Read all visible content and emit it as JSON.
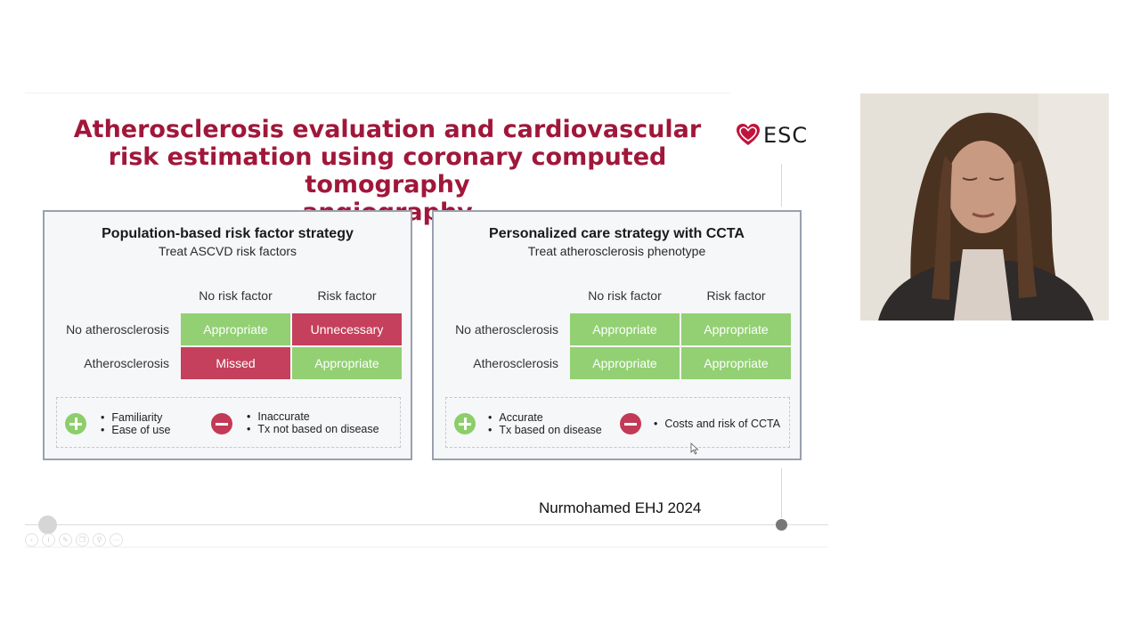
{
  "slide": {
    "title_lines": [
      "Atherosclerosis evaluation and cardiovascular",
      "risk estimation using coronary computed tomography",
      "angiography"
    ],
    "logo_text": "ESC",
    "citation": "Nurmohamed EHJ 2024"
  },
  "panels": [
    {
      "title": "Population-based risk factor strategy",
      "subtitle": "Treat ASCVD risk factors",
      "col_headers": [
        "No risk factor",
        "Risk factor"
      ],
      "rows": [
        {
          "label": "No atherosclerosis",
          "cells": [
            {
              "text": "Appropriate",
              "status": "green"
            },
            {
              "text": "Unnecessary",
              "status": "red"
            }
          ]
        },
        {
          "label": "Atherosclerosis",
          "cells": [
            {
              "text": "Missed",
              "status": "red"
            },
            {
              "text": "Appropriate",
              "status": "green"
            }
          ]
        }
      ],
      "pros": [
        "Familiarity",
        "Ease of use"
      ],
      "cons": [
        "Inaccurate",
        "Tx not based on disease"
      ]
    },
    {
      "title": "Personalized care strategy with CCTA",
      "subtitle": "Treat atherosclerosis phenotype",
      "col_headers": [
        "No risk factor",
        "Risk factor"
      ],
      "rows": [
        {
          "label": "No atherosclerosis",
          "cells": [
            {
              "text": "Appropriate",
              "status": "green"
            },
            {
              "text": "Appropriate",
              "status": "green"
            }
          ]
        },
        {
          "label": "Atherosclerosis",
          "cells": [
            {
              "text": "Appropriate",
              "status": "green"
            },
            {
              "text": "Appropriate",
              "status": "green"
            }
          ]
        }
      ],
      "pros": [
        "Accurate",
        "Tx based on disease"
      ],
      "cons": [
        "Costs and risk of CCTA"
      ]
    }
  ],
  "colors": {
    "title": "#a0173a",
    "green": "#92d073",
    "red": "#c5405c"
  },
  "player": {
    "controls": [
      "prev-icon",
      "info-icon",
      "edit-icon",
      "copy-icon",
      "zoom-icon",
      "more-icon"
    ]
  },
  "video": {
    "icon": "presenter-webcam"
  }
}
